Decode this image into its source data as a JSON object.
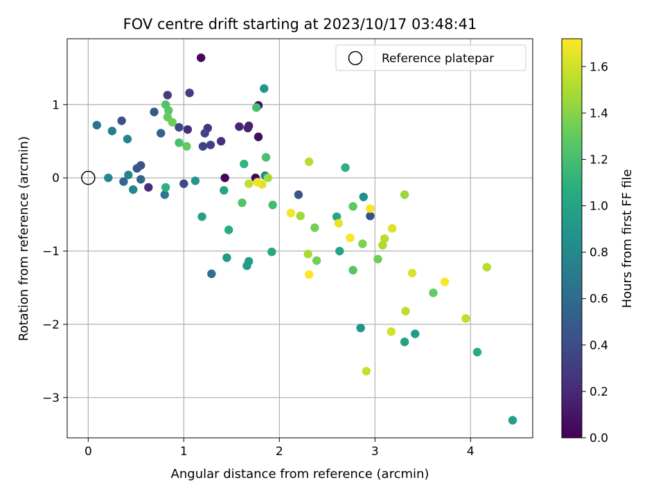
{
  "chart_data": {
    "type": "scatter",
    "title": "FOV centre drift starting at 2023/10/17 03:48:41",
    "xlabel": "Angular distance from reference (arcmin)",
    "ylabel": "Rotation from reference (arcmin)",
    "xlim": [
      -0.22,
      4.65
    ],
    "ylim": [
      -3.55,
      1.9
    ],
    "xticks": [
      0,
      1,
      2,
      3,
      4
    ],
    "yticks": [
      1,
      0,
      -1,
      -2,
      -3
    ],
    "xtick_labels": [
      "0",
      "1",
      "2",
      "3",
      "4"
    ],
    "ytick_labels": [
      "1",
      "0",
      "−1",
      "−2",
      "−3"
    ],
    "grid": true,
    "legend": {
      "position": "top-right",
      "entries": [
        {
          "label": "Reference platepar",
          "marker": "open-circle"
        }
      ]
    },
    "reference_point": {
      "x": 0,
      "y": 0
    },
    "colorbar": {
      "label": "Hours from first FF file",
      "colormap": "viridis",
      "range": [
        0.0,
        1.72
      ],
      "ticks": [
        0.0,
        0.2,
        0.4,
        0.6,
        0.8,
        1.0,
        1.2,
        1.4,
        1.6
      ],
      "tick_labels": [
        "0.0",
        "0.2",
        "0.4",
        "0.6",
        "0.8",
        "1.0",
        "1.2",
        "1.4",
        "1.6"
      ]
    },
    "points": [
      {
        "x": 1.18,
        "y": 1.64,
        "c": 0.02
      },
      {
        "x": 1.43,
        "y": 0.0,
        "c": 0.02
      },
      {
        "x": 1.75,
        "y": 0.0,
        "c": 0.03
      },
      {
        "x": 1.78,
        "y": 0.56,
        "c": 0.05
      },
      {
        "x": 1.78,
        "y": 0.99,
        "c": 0.07
      },
      {
        "x": 1.68,
        "y": 0.71,
        "c": 0.15
      },
      {
        "x": 1.67,
        "y": 0.68,
        "c": 0.16
      },
      {
        "x": 1.58,
        "y": 0.7,
        "c": 0.17
      },
      {
        "x": 0.63,
        "y": -0.13,
        "c": 0.21
      },
      {
        "x": 1.04,
        "y": 0.66,
        "c": 0.22
      },
      {
        "x": 1.39,
        "y": 0.5,
        "c": 0.24
      },
      {
        "x": 1.25,
        "y": 0.68,
        "c": 0.26
      },
      {
        "x": 0.83,
        "y": 1.13,
        "c": 0.3
      },
      {
        "x": 1.06,
        "y": 1.16,
        "c": 0.3
      },
      {
        "x": 1.28,
        "y": 0.45,
        "c": 0.32
      },
      {
        "x": 1.2,
        "y": 0.43,
        "c": 0.34
      },
      {
        "x": 1.22,
        "y": 0.61,
        "c": 0.36
      },
      {
        "x": 0.95,
        "y": 0.69,
        "c": 0.38
      },
      {
        "x": 1.0,
        "y": -0.08,
        "c": 0.38
      },
      {
        "x": 2.95,
        "y": -0.52,
        "c": 0.4
      },
      {
        "x": 0.35,
        "y": 0.78,
        "c": 0.43
      },
      {
        "x": 0.55,
        "y": 0.17,
        "c": 0.43
      },
      {
        "x": 0.51,
        "y": 0.13,
        "c": 0.45
      },
      {
        "x": 2.2,
        "y": -0.23,
        "c": 0.46
      },
      {
        "x": 0.69,
        "y": 0.9,
        "c": 0.48
      },
      {
        "x": 0.76,
        "y": 0.61,
        "c": 0.53
      },
      {
        "x": 0.55,
        "y": -0.02,
        "c": 0.55
      },
      {
        "x": 0.37,
        "y": -0.05,
        "c": 0.57
      },
      {
        "x": 1.29,
        "y": -1.31,
        "c": 0.62
      },
      {
        "x": 0.09,
        "y": 0.72,
        "c": 0.65
      },
      {
        "x": 0.8,
        "y": -0.23,
        "c": 0.68
      },
      {
        "x": 0.25,
        "y": 0.64,
        "c": 0.72
      },
      {
        "x": 0.41,
        "y": 0.53,
        "c": 0.76
      },
      {
        "x": 0.42,
        "y": 0.04,
        "c": 0.77
      },
      {
        "x": 0.47,
        "y": -0.16,
        "c": 0.78
      },
      {
        "x": 0.21,
        "y": 0.0,
        "c": 0.8
      },
      {
        "x": 1.85,
        "y": 0.03,
        "c": 0.82
      },
      {
        "x": 2.88,
        "y": -0.26,
        "c": 0.85
      },
      {
        "x": 2.85,
        "y": -2.05,
        "c": 0.88
      },
      {
        "x": 1.84,
        "y": 1.22,
        "c": 0.88
      },
      {
        "x": 1.12,
        "y": -0.04,
        "c": 0.9
      },
      {
        "x": 1.45,
        "y": -1.09,
        "c": 0.92
      },
      {
        "x": 1.66,
        "y": -1.2,
        "c": 0.94
      },
      {
        "x": 1.68,
        "y": -1.14,
        "c": 0.95
      },
      {
        "x": 3.42,
        "y": -2.13,
        "c": 0.93
      },
      {
        "x": 4.44,
        "y": -3.31,
        "c": 0.96
      },
      {
        "x": 3.31,
        "y": -2.24,
        "c": 0.98
      },
      {
        "x": 1.19,
        "y": -0.53,
        "c": 0.98
      },
      {
        "x": 2.63,
        "y": -1.0,
        "c": 0.99
      },
      {
        "x": 1.42,
        "y": -0.17,
        "c": 1.0
      },
      {
        "x": 2.6,
        "y": -0.53,
        "c": 1.02
      },
      {
        "x": 1.92,
        "y": -1.01,
        "c": 1.03
      },
      {
        "x": 4.07,
        "y": -2.38,
        "c": 1.05
      },
      {
        "x": 1.47,
        "y": -0.71,
        "c": 1.06
      },
      {
        "x": 0.81,
        "y": -0.13,
        "c": 1.1
      },
      {
        "x": 2.69,
        "y": 0.14,
        "c": 1.1
      },
      {
        "x": 1.63,
        "y": 0.19,
        "c": 1.12
      },
      {
        "x": 1.93,
        "y": -0.37,
        "c": 1.18
      },
      {
        "x": 1.76,
        "y": 0.96,
        "c": 1.2
      },
      {
        "x": 1.86,
        "y": 0.28,
        "c": 1.21
      },
      {
        "x": 0.95,
        "y": 0.48,
        "c": 1.22
      },
      {
        "x": 0.81,
        "y": 1.0,
        "c": 1.23
      },
      {
        "x": 1.61,
        "y": -0.34,
        "c": 1.24
      },
      {
        "x": 0.84,
        "y": 0.92,
        "c": 1.26
      },
      {
        "x": 2.77,
        "y": -1.26,
        "c": 1.25
      },
      {
        "x": 2.77,
        "y": -0.39,
        "c": 1.28
      },
      {
        "x": 3.61,
        "y": -1.57,
        "c": 1.3
      },
      {
        "x": 0.83,
        "y": 0.83,
        "c": 1.3
      },
      {
        "x": 1.03,
        "y": 0.43,
        "c": 1.3
      },
      {
        "x": 3.03,
        "y": -1.11,
        "c": 1.33
      },
      {
        "x": 0.88,
        "y": 0.76,
        "c": 1.34
      },
      {
        "x": 2.37,
        "y": -0.68,
        "c": 1.35
      },
      {
        "x": 2.39,
        "y": -1.13,
        "c": 1.35
      },
      {
        "x": 2.87,
        "y": -0.9,
        "c": 1.37
      },
      {
        "x": 3.31,
        "y": -0.23,
        "c": 1.45
      },
      {
        "x": 2.22,
        "y": -0.52,
        "c": 1.47
      },
      {
        "x": 1.88,
        "y": 0.0,
        "c": 1.48
      },
      {
        "x": 2.3,
        "y": -1.04,
        "c": 1.49
      },
      {
        "x": 3.08,
        "y": -0.92,
        "c": 1.5
      },
      {
        "x": 3.1,
        "y": -0.83,
        "c": 1.52
      },
      {
        "x": 2.31,
        "y": 0.22,
        "c": 1.53
      },
      {
        "x": 4.17,
        "y": -1.22,
        "c": 1.53
      },
      {
        "x": 3.32,
        "y": -1.82,
        "c": 1.55
      },
      {
        "x": 3.95,
        "y": -1.92,
        "c": 1.55
      },
      {
        "x": 1.68,
        "y": -0.08,
        "c": 1.56
      },
      {
        "x": 2.91,
        "y": -2.64,
        "c": 1.57
      },
      {
        "x": 3.17,
        "y": -2.1,
        "c": 1.6
      },
      {
        "x": 3.39,
        "y": -1.3,
        "c": 1.62
      },
      {
        "x": 3.18,
        "y": -0.69,
        "c": 1.63
      },
      {
        "x": 1.82,
        "y": -0.09,
        "c": 1.64
      },
      {
        "x": 2.62,
        "y": -0.62,
        "c": 1.66
      },
      {
        "x": 1.77,
        "y": -0.06,
        "c": 1.68
      },
      {
        "x": 2.12,
        "y": -0.48,
        "c": 1.69
      },
      {
        "x": 2.74,
        "y": -0.82,
        "c": 1.7
      },
      {
        "x": 2.95,
        "y": -0.42,
        "c": 1.7
      },
      {
        "x": 3.73,
        "y": -1.42,
        "c": 1.71
      },
      {
        "x": 2.31,
        "y": -1.32,
        "c": 1.71
      }
    ]
  }
}
